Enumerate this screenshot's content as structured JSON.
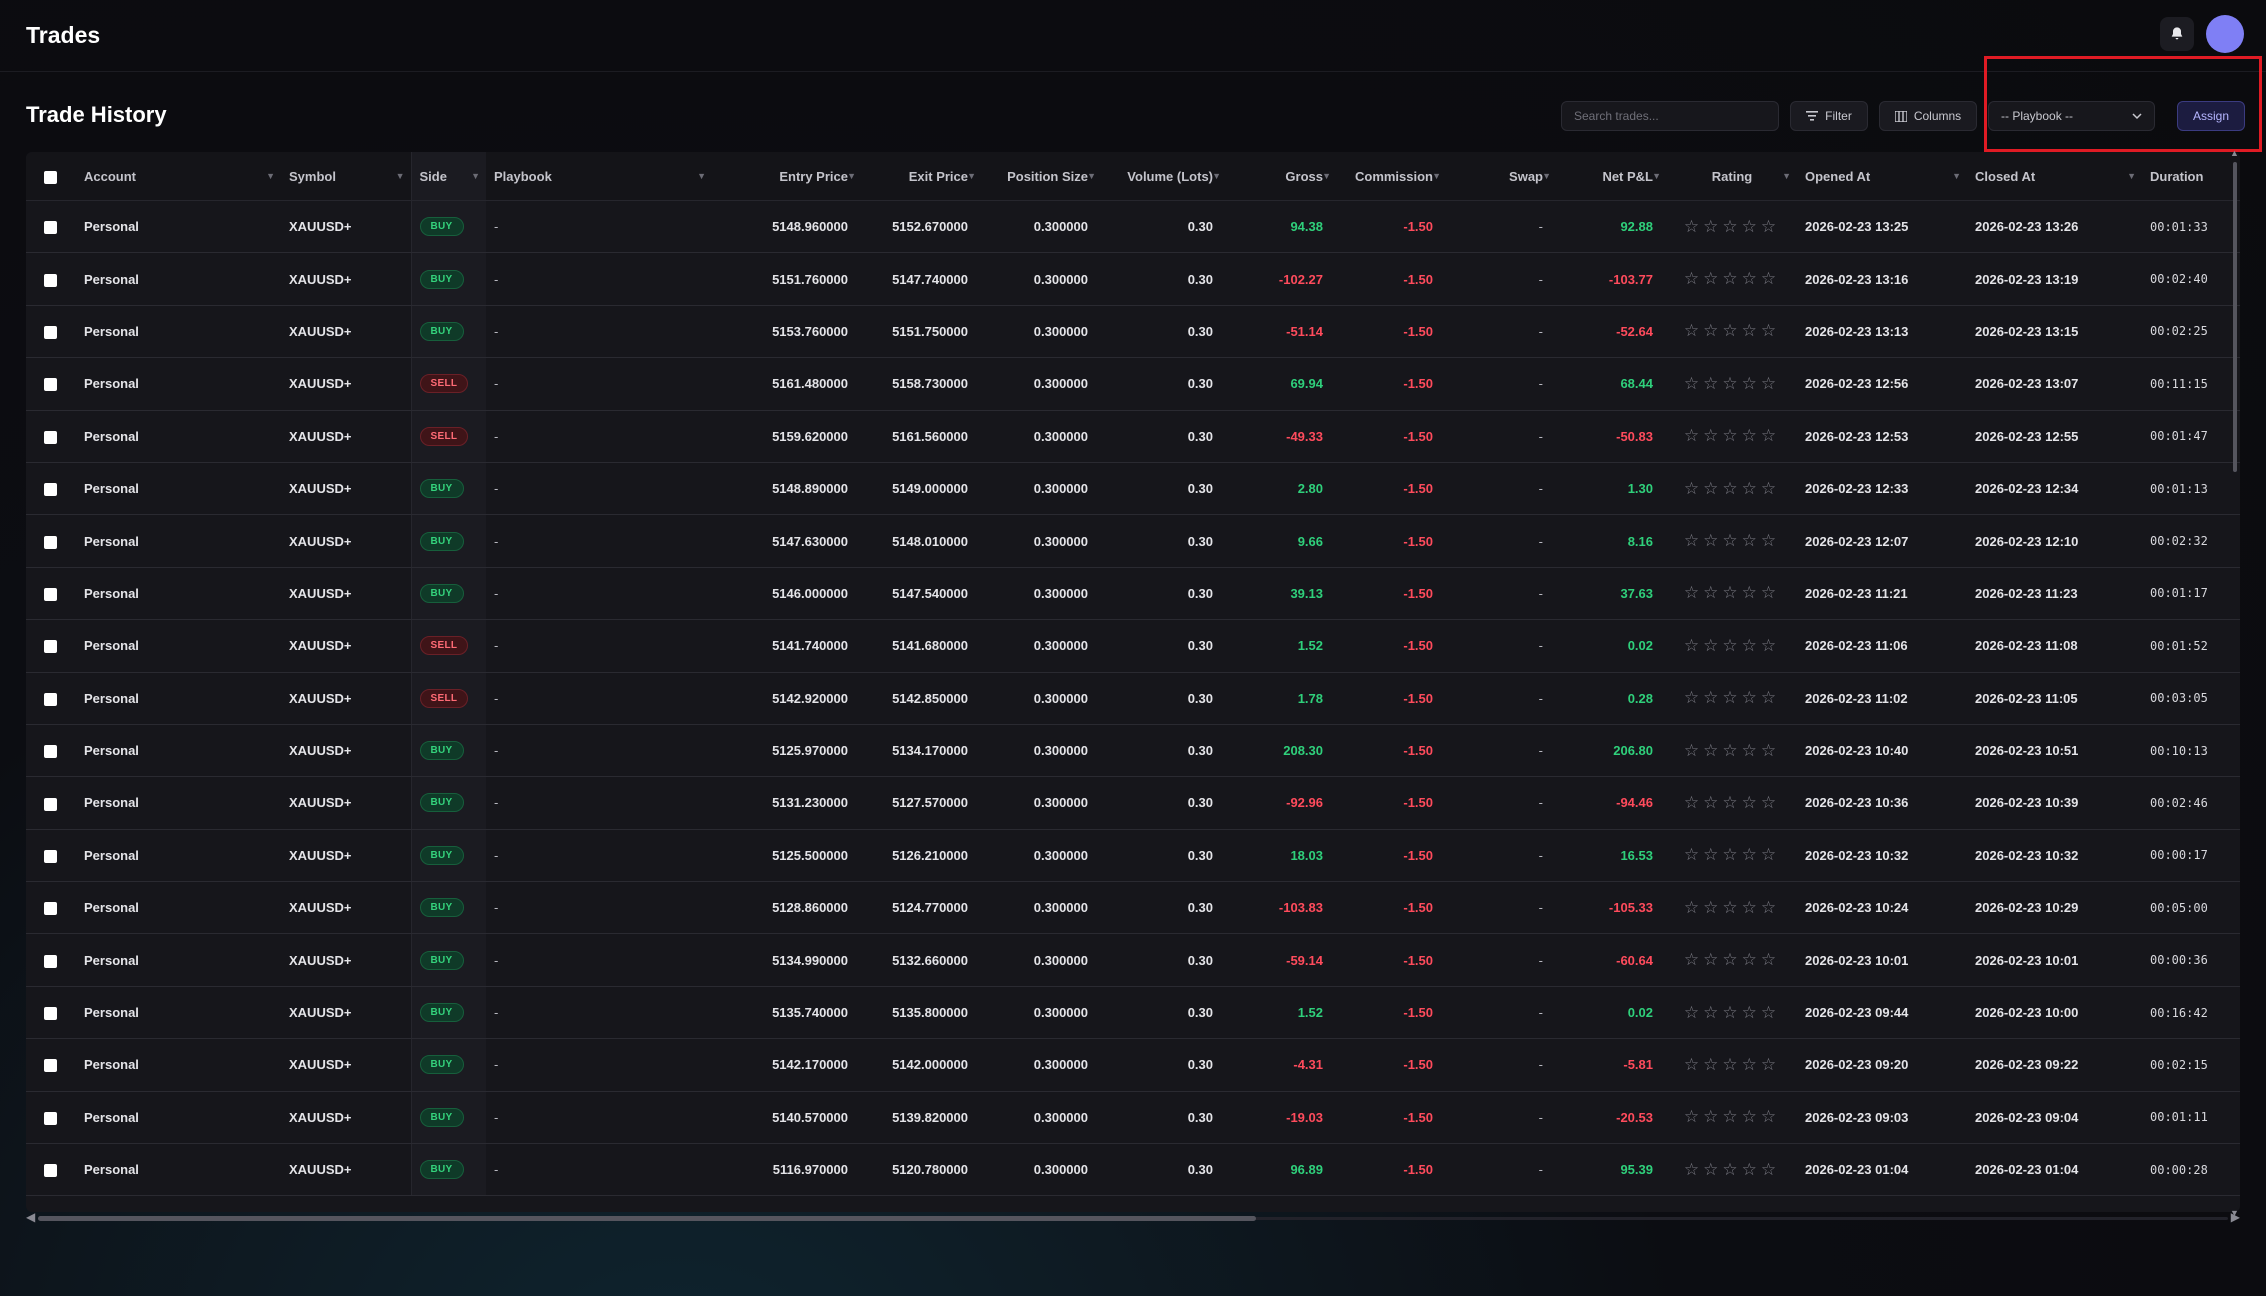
{
  "header": {
    "title": "Trades"
  },
  "section": {
    "title": "Trade History"
  },
  "toolbar": {
    "search_placeholder": "Search trades...",
    "filter_label": "Filter",
    "columns_label": "Columns",
    "playbook_value": "-- Playbook --",
    "assign_label": "Assign"
  },
  "columns": [
    "Account",
    "Symbol",
    "Side",
    "Playbook",
    "Entry Price",
    "Exit Price",
    "Position Size",
    "Volume (Lots)",
    "Gross",
    "Commission",
    "Swap",
    "Net P&L",
    "Rating",
    "Opened At",
    "Closed At",
    "Duration"
  ],
  "trades": [
    {
      "account": "Personal",
      "symbol": "XAUUSD+",
      "side": "BUY",
      "playbook": "-",
      "entry": "5148.960000",
      "exit": "5152.670000",
      "size": "0.300000",
      "lots": "0.30",
      "gross": "94.38",
      "commission": "-1.50",
      "swap": "-",
      "net": "92.88",
      "opened": "2026-02-23 13:25",
      "closed": "2026-02-23 13:26",
      "duration": "00:01:33",
      "extra": ""
    },
    {
      "account": "Personal",
      "symbol": "XAUUSD+",
      "side": "BUY",
      "playbook": "-",
      "entry": "5151.760000",
      "exit": "5147.740000",
      "size": "0.300000",
      "lots": "0.30",
      "gross": "-102.27",
      "commission": "-1.50",
      "swap": "-",
      "net": "-103.77",
      "opened": "2026-02-23 13:16",
      "closed": "2026-02-23 13:19",
      "duration": "00:02:40",
      "extra": "5"
    },
    {
      "account": "Personal",
      "symbol": "XAUUSD+",
      "side": "BUY",
      "playbook": "-",
      "entry": "5153.760000",
      "exit": "5151.750000",
      "size": "0.300000",
      "lots": "0.30",
      "gross": "-51.14",
      "commission": "-1.50",
      "swap": "-",
      "net": "-52.64",
      "opened": "2026-02-23 13:13",
      "closed": "2026-02-23 13:15",
      "duration": "00:02:25",
      "extra": "5"
    },
    {
      "account": "Personal",
      "symbol": "XAUUSD+",
      "side": "SELL",
      "playbook": "-",
      "entry": "5161.480000",
      "exit": "5158.730000",
      "size": "0.300000",
      "lots": "0.30",
      "gross": "69.94",
      "commission": "-1.50",
      "swap": "-",
      "net": "68.44",
      "opened": "2026-02-23 12:56",
      "closed": "2026-02-23 13:07",
      "duration": "00:11:15",
      "extra": ""
    },
    {
      "account": "Personal",
      "symbol": "XAUUSD+",
      "side": "SELL",
      "playbook": "-",
      "entry": "5159.620000",
      "exit": "5161.560000",
      "size": "0.300000",
      "lots": "0.30",
      "gross": "-49.33",
      "commission": "-1.50",
      "swap": "-",
      "net": "-50.83",
      "opened": "2026-02-23 12:53",
      "closed": "2026-02-23 12:55",
      "duration": "00:01:47",
      "extra": "5"
    },
    {
      "account": "Personal",
      "symbol": "XAUUSD+",
      "side": "BUY",
      "playbook": "-",
      "entry": "5148.890000",
      "exit": "5149.000000",
      "size": "0.300000",
      "lots": "0.30",
      "gross": "2.80",
      "commission": "-1.50",
      "swap": "-",
      "net": "1.30",
      "opened": "2026-02-23 12:33",
      "closed": "2026-02-23 12:34",
      "duration": "00:01:13",
      "extra": "5"
    },
    {
      "account": "Personal",
      "symbol": "XAUUSD+",
      "side": "BUY",
      "playbook": "-",
      "entry": "5147.630000",
      "exit": "5148.010000",
      "size": "0.300000",
      "lots": "0.30",
      "gross": "9.66",
      "commission": "-1.50",
      "swap": "-",
      "net": "8.16",
      "opened": "2026-02-23 12:07",
      "closed": "2026-02-23 12:10",
      "duration": "00:02:32",
      "extra": ""
    },
    {
      "account": "Personal",
      "symbol": "XAUUSD+",
      "side": "BUY",
      "playbook": "-",
      "entry": "5146.000000",
      "exit": "5147.540000",
      "size": "0.300000",
      "lots": "0.30",
      "gross": "39.13",
      "commission": "-1.50",
      "swap": "-",
      "net": "37.63",
      "opened": "2026-02-23 11:21",
      "closed": "2026-02-23 11:23",
      "duration": "00:01:17",
      "extra": ""
    },
    {
      "account": "Personal",
      "symbol": "XAUUSD+",
      "side": "SELL",
      "playbook": "-",
      "entry": "5141.740000",
      "exit": "5141.680000",
      "size": "0.300000",
      "lots": "0.30",
      "gross": "1.52",
      "commission": "-1.50",
      "swap": "-",
      "net": "0.02",
      "opened": "2026-02-23 11:06",
      "closed": "2026-02-23 11:08",
      "duration": "00:01:52",
      "extra": "5"
    },
    {
      "account": "Personal",
      "symbol": "XAUUSD+",
      "side": "SELL",
      "playbook": "-",
      "entry": "5142.920000",
      "exit": "5142.850000",
      "size": "0.300000",
      "lots": "0.30",
      "gross": "1.78",
      "commission": "-1.50",
      "swap": "-",
      "net": "0.28",
      "opened": "2026-02-23 11:02",
      "closed": "2026-02-23 11:05",
      "duration": "00:03:05",
      "extra": "5"
    },
    {
      "account": "Personal",
      "symbol": "XAUUSD+",
      "side": "BUY",
      "playbook": "-",
      "entry": "5125.970000",
      "exit": "5134.170000",
      "size": "0.300000",
      "lots": "0.30",
      "gross": "208.30",
      "commission": "-1.50",
      "swap": "-",
      "net": "206.80",
      "opened": "2026-02-23 10:40",
      "closed": "2026-02-23 10:51",
      "duration": "00:10:13",
      "extra": ""
    },
    {
      "account": "Personal",
      "symbol": "XAUUSD+",
      "side": "BUY",
      "playbook": "-",
      "entry": "5131.230000",
      "exit": "5127.570000",
      "size": "0.300000",
      "lots": "0.30",
      "gross": "-92.96",
      "commission": "-1.50",
      "swap": "-",
      "net": "-94.46",
      "opened": "2026-02-23 10:36",
      "closed": "2026-02-23 10:39",
      "duration": "00:02:46",
      "extra": "5"
    },
    {
      "account": "Personal",
      "symbol": "XAUUSD+",
      "side": "BUY",
      "playbook": "-",
      "entry": "5125.500000",
      "exit": "5126.210000",
      "size": "0.300000",
      "lots": "0.30",
      "gross": "18.03",
      "commission": "-1.50",
      "swap": "-",
      "net": "16.53",
      "opened": "2026-02-23 10:32",
      "closed": "2026-02-23 10:32",
      "duration": "00:00:17",
      "extra": ""
    },
    {
      "account": "Personal",
      "symbol": "XAUUSD+",
      "side": "BUY",
      "playbook": "-",
      "entry": "5128.860000",
      "exit": "5124.770000",
      "size": "0.300000",
      "lots": "0.30",
      "gross": "-103.83",
      "commission": "-1.50",
      "swap": "-",
      "net": "-105.33",
      "opened": "2026-02-23 10:24",
      "closed": "2026-02-23 10:29",
      "duration": "00:05:00",
      "extra": "5"
    },
    {
      "account": "Personal",
      "symbol": "XAUUSD+",
      "side": "BUY",
      "playbook": "-",
      "entry": "5134.990000",
      "exit": "5132.660000",
      "size": "0.300000",
      "lots": "0.30",
      "gross": "-59.14",
      "commission": "-1.50",
      "swap": "-",
      "net": "-60.64",
      "opened": "2026-02-23 10:01",
      "closed": "2026-02-23 10:01",
      "duration": "00:00:36",
      "extra": "5"
    },
    {
      "account": "Personal",
      "symbol": "XAUUSD+",
      "side": "BUY",
      "playbook": "-",
      "entry": "5135.740000",
      "exit": "5135.800000",
      "size": "0.300000",
      "lots": "0.30",
      "gross": "1.52",
      "commission": "-1.50",
      "swap": "-",
      "net": "0.02",
      "opened": "2026-02-23 09:44",
      "closed": "2026-02-23 10:00",
      "duration": "00:16:42",
      "extra": "5"
    },
    {
      "account": "Personal",
      "symbol": "XAUUSD+",
      "side": "BUY",
      "playbook": "-",
      "entry": "5142.170000",
      "exit": "5142.000000",
      "size": "0.300000",
      "lots": "0.30",
      "gross": "-4.31",
      "commission": "-1.50",
      "swap": "-",
      "net": "-5.81",
      "opened": "2026-02-23 09:20",
      "closed": "2026-02-23 09:22",
      "duration": "00:02:15",
      "extra": "5"
    },
    {
      "account": "Personal",
      "symbol": "XAUUSD+",
      "side": "BUY",
      "playbook": "-",
      "entry": "5140.570000",
      "exit": "5139.820000",
      "size": "0.300000",
      "lots": "0.30",
      "gross": "-19.03",
      "commission": "-1.50",
      "swap": "-",
      "net": "-20.53",
      "opened": "2026-02-23 09:03",
      "closed": "2026-02-23 09:04",
      "duration": "00:01:11",
      "extra": "5"
    },
    {
      "account": "Personal",
      "symbol": "XAUUSD+",
      "side": "BUY",
      "playbook": "-",
      "entry": "5116.970000",
      "exit": "5120.780000",
      "size": "0.300000",
      "lots": "0.30",
      "gross": "96.89",
      "commission": "-1.50",
      "swap": "-",
      "net": "95.39",
      "opened": "2026-02-23 01:04",
      "closed": "2026-02-23 01:04",
      "duration": "00:00:28",
      "extra": "5"
    }
  ],
  "colors": {
    "positive": "#2fd07b",
    "negative": "#ff4b5c",
    "accent": "#7f7ff5",
    "highlight": "#e01b24"
  }
}
